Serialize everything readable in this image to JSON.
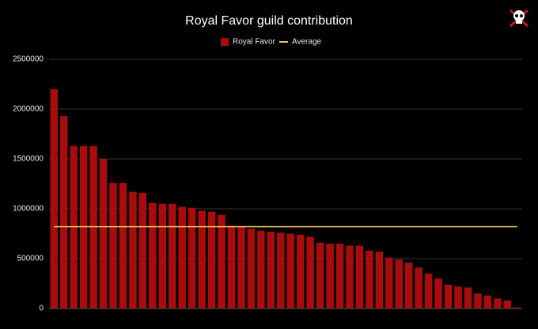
{
  "chart_data": {
    "type": "bar",
    "title": "Royal Favor guild contribution",
    "categories": [
      null,
      null,
      null,
      null,
      null,
      null,
      null,
      null,
      null,
      null,
      null,
      null,
      null,
      null,
      null,
      null,
      null,
      null,
      null,
      null,
      null,
      null,
      null,
      null,
      null,
      null,
      null,
      null,
      null,
      null,
      null,
      null,
      null,
      null,
      null,
      null,
      null,
      null,
      null,
      null,
      null,
      null,
      null,
      null,
      null,
      null,
      null,
      null
    ],
    "series": [
      {
        "name": "Royal Favor",
        "color": "#a80c0c",
        "values": [
          2200000,
          1930000,
          1630000,
          1630000,
          1630000,
          1500000,
          1260000,
          1260000,
          1170000,
          1160000,
          1060000,
          1050000,
          1050000,
          1020000,
          1010000,
          980000,
          970000,
          940000,
          830000,
          820000,
          800000,
          780000,
          770000,
          760000,
          750000,
          740000,
          720000,
          660000,
          650000,
          650000,
          630000,
          630000,
          580000,
          570000,
          510000,
          490000,
          460000,
          410000,
          350000,
          300000,
          240000,
          220000,
          210000,
          150000,
          130000,
          100000,
          80000,
          10000
        ]
      }
    ],
    "average": {
      "name": "Average",
      "color": "#f2c45a",
      "value": 820000
    },
    "ylim": [
      0,
      2500000
    ],
    "yticks": [
      0,
      500000,
      1000000,
      1500000,
      2000000,
      2500000
    ],
    "grid": true
  }
}
